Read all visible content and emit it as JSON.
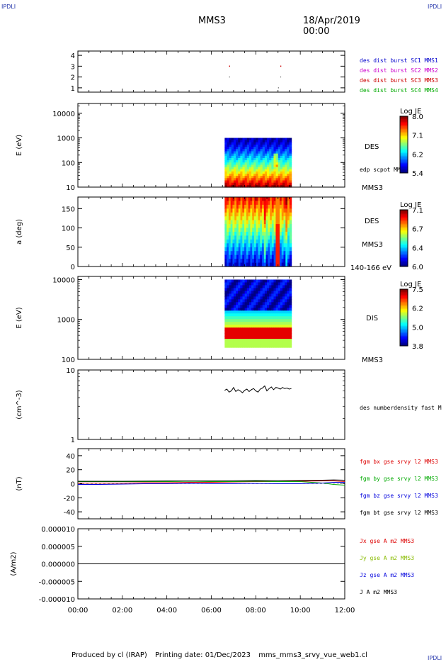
{
  "corner_tag": "IPDLI",
  "header": {
    "spacecraft": "MMS3",
    "datetime": "18/Apr/2019 00:00"
  },
  "footer": {
    "produced_by": "Produced by cl (IRAP)",
    "printing_date": "Printing date: 01/Dec/2023",
    "plot_name": "mms_mms3_srvy_vue_web1.cl"
  },
  "chart_data": [
    {
      "id": "burst",
      "type": "scatter",
      "yticks": [
        "1",
        "2",
        "3",
        "4"
      ],
      "ylim": [
        0.6,
        4.4
      ],
      "series": [
        {
          "name": "des dist burst SC1 MMS1",
          "color": "#0000cc",
          "x": [],
          "y": []
        },
        {
          "name": "des dist burst SC2 MMS2",
          "color": "#cc00cc",
          "x": [],
          "y": []
        },
        {
          "name": "des dist burst SC3 MMS3",
          "color": "#cc0000",
          "x": [
            6.8,
            9.1
          ],
          "y": [
            3.0,
            3.0
          ]
        },
        {
          "name": "des dist burst SC4 MMS4",
          "color": "#00aa00",
          "x": [],
          "y": []
        }
      ],
      "extra_points": [
        {
          "x": 6.8,
          "y": 2.0
        },
        {
          "x": 9.1,
          "y": 2.0
        },
        {
          "x": 9.0,
          "y": 1.0
        }
      ]
    },
    {
      "id": "des_energy",
      "type": "heatmap",
      "ylabel": "E (eV)",
      "scale": "log",
      "ylim": [
        10,
        25000
      ],
      "yticks": [
        "10",
        "100",
        "1000",
        "10000"
      ],
      "data_x_range": [
        6.6,
        9.6
      ],
      "data_y_range": [
        10,
        1000
      ],
      "right_label": "DES",
      "overlay_label": "edp scpot MMS3",
      "colorbar": {
        "title": "Log JE",
        "ticks": [
          "8.0",
          "7.1",
          "6.2",
          "5.4"
        ],
        "min": 5.4,
        "max": 8.0
      },
      "sub_label": "MMS3"
    },
    {
      "id": "des_pitch",
      "type": "heatmap",
      "ylabel": "a (deg)",
      "ylim": [
        0,
        180
      ],
      "yticks": [
        "0",
        "50",
        "100",
        "150"
      ],
      "data_x_range": [
        6.6,
        9.6
      ],
      "right_label": "DES",
      "sub_label": "MMS3",
      "energy_label": "140-166 eV",
      "colorbar": {
        "title": "Log JE",
        "ticks": [
          "7.1",
          "6.7",
          "6.4",
          "6.0"
        ],
        "min": 6.0,
        "max": 7.1
      }
    },
    {
      "id": "dis_energy",
      "type": "heatmap",
      "ylabel": "E (eV)",
      "scale": "log",
      "ylim": [
        100,
        12000
      ],
      "yticks": [
        "100",
        "1000",
        "10000"
      ],
      "data_x_range": [
        6.6,
        9.6
      ],
      "data_y_range": [
        200,
        10000
      ],
      "right_label": "DIS",
      "sub_label": "MMS3",
      "colorbar": {
        "title": "Log JE",
        "ticks": [
          "7.5",
          "6.2",
          "5.0",
          "3.8"
        ],
        "min": 3.8,
        "max": 7.5
      }
    },
    {
      "id": "density",
      "type": "line",
      "ylabel": "(cm^-3)",
      "scale": "log",
      "ylim": [
        1,
        10
      ],
      "yticks": [
        "1",
        "10"
      ],
      "series": [
        {
          "name": "des numberdensity fast M",
          "color": "#000000",
          "x": [
            6.6,
            6.7,
            6.8,
            6.9,
            7.0,
            7.1,
            7.2,
            7.3,
            7.4,
            7.5,
            7.6,
            7.7,
            7.8,
            7.9,
            8.0,
            8.1,
            8.2,
            8.3,
            8.4,
            8.5,
            8.6,
            8.7,
            8.8,
            8.9,
            9.0,
            9.1,
            9.2,
            9.3,
            9.4,
            9.5,
            9.6
          ],
          "y": [
            5.1,
            5.3,
            4.8,
            5.0,
            5.6,
            4.9,
            5.2,
            5.0,
            4.7,
            5.1,
            5.3,
            4.9,
            5.2,
            5.4,
            5.0,
            4.8,
            5.3,
            5.5,
            5.9,
            5.0,
            5.4,
            5.7,
            5.2,
            5.6,
            5.5,
            5.3,
            5.6,
            5.4,
            5.5,
            5.3,
            5.4
          ]
        }
      ]
    },
    {
      "id": "fgm",
      "type": "line",
      "ylabel": "(nT)",
      "ylim": [
        -50,
        50
      ],
      "yticks": [
        "-40",
        "-20",
        "0",
        "20",
        "40"
      ],
      "series": [
        {
          "name": "fgm bx gse srvy l2 MMS3",
          "color": "#dd0000",
          "x": [
            0,
            1,
            2,
            3,
            4,
            5,
            6,
            7,
            8,
            9,
            10,
            11,
            11.5,
            12
          ],
          "y": [
            1,
            1,
            1,
            1.5,
            1.5,
            2,
            2,
            2.5,
            3,
            3,
            3.5,
            4,
            4,
            3
          ]
        },
        {
          "name": "fgm by gse srvy l2 MMS3",
          "color": "#00aa00",
          "x": [
            0,
            1,
            2,
            3,
            4,
            5,
            6,
            7,
            8,
            9,
            10,
            11,
            11.5,
            12
          ],
          "y": [
            3,
            3,
            3,
            3,
            3,
            3.5,
            3,
            3,
            3.5,
            3,
            3,
            1,
            -1,
            -2
          ]
        },
        {
          "name": "fgm bz gse srvy l2 MMS3",
          "color": "#0000dd",
          "x": [
            0,
            1,
            2,
            3,
            4,
            5,
            6,
            7,
            8,
            9,
            10,
            11,
            11.5,
            12
          ],
          "y": [
            -1,
            -1,
            -0.5,
            0,
            0,
            0.5,
            0,
            0,
            0.5,
            0,
            0,
            1,
            2,
            2
          ]
        },
        {
          "name": "fgm bt gse srvy l2 MMS3",
          "color": "#000000",
          "x": [
            0,
            1,
            2,
            3,
            4,
            5,
            6,
            7,
            8,
            9,
            10,
            11,
            11.5,
            12
          ],
          "y": [
            3.5,
            3.5,
            3.5,
            3.8,
            4,
            4,
            4,
            4.2,
            4.5,
            4.5,
            4.8,
            5,
            5.5,
            5
          ]
        }
      ]
    },
    {
      "id": "current",
      "type": "line",
      "ylabel": "(A/m2)",
      "ylim": [
        -1e-05,
        1e-05
      ],
      "yticks": [
        "-0.000010",
        "-0.000005",
        "0.000000",
        "0.000005",
        "0.000010"
      ],
      "series": [
        {
          "name": "Jx gse A m2 MMS3",
          "color": "#dd0000",
          "x": [
            0,
            12
          ],
          "y": [
            0,
            0
          ]
        },
        {
          "name": "Jy gse A m2 MMS3",
          "color": "#88bb00",
          "x": [
            0,
            12
          ],
          "y": [
            0,
            0
          ]
        },
        {
          "name": "Jz gse A m2 MMS3",
          "color": "#0000dd",
          "x": [
            0,
            12
          ],
          "y": [
            0,
            0
          ]
        },
        {
          "name": "J A m2 MMS3",
          "color": "#000000",
          "x": [
            0,
            12
          ],
          "y": [
            0,
            0
          ]
        }
      ]
    }
  ],
  "xaxis": {
    "xlim": [
      0,
      12
    ],
    "tick_labels": [
      "00:00",
      "02:00",
      "04:00",
      "06:00",
      "08:00",
      "10:00",
      "12:00"
    ]
  }
}
